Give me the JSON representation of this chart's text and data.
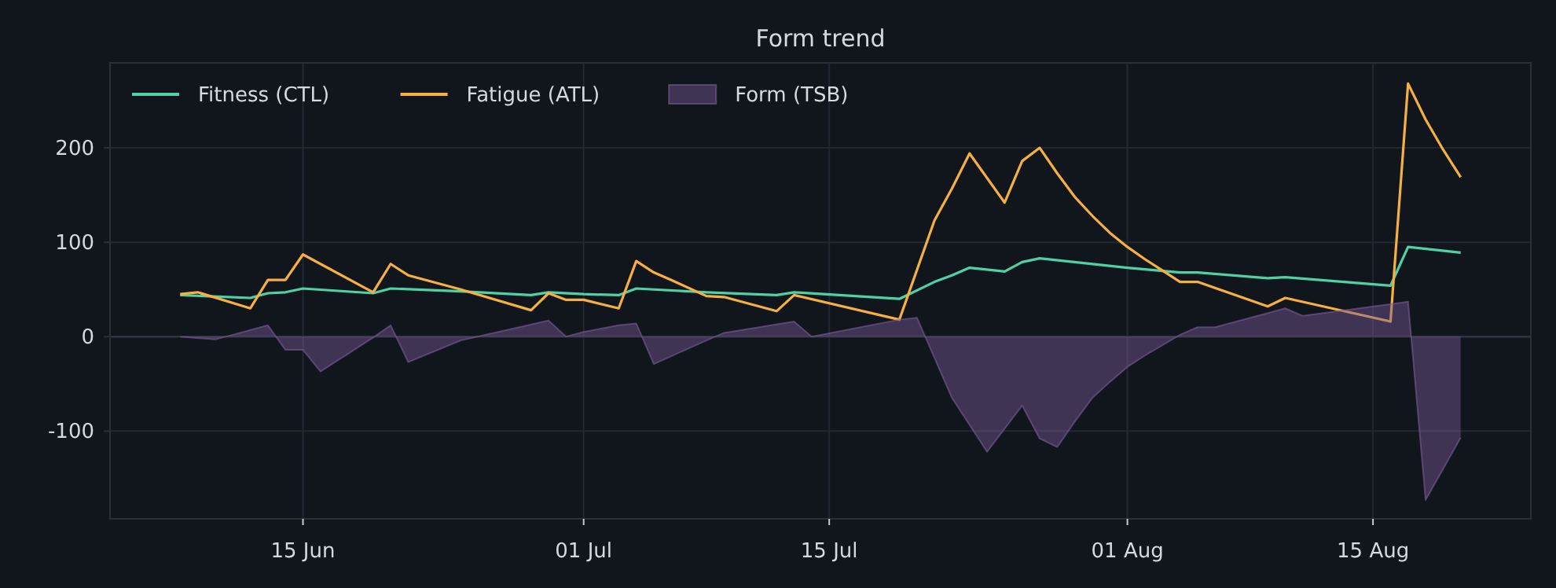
{
  "chart_data": {
    "type": "line",
    "title": "Form trend",
    "xlim": [
      "--06-04",
      "--08-24"
    ],
    "xticks": [
      {
        "value": "--06-15",
        "label": "15 Jun"
      },
      {
        "value": "--07-01",
        "label": "01 Jul"
      },
      {
        "value": "--07-15",
        "label": "15 Jul"
      },
      {
        "value": "--08-01",
        "label": "01 Aug"
      },
      {
        "value": "--08-15",
        "label": "15 Aug"
      }
    ],
    "ylim": [
      -193,
      290
    ],
    "yticks": [
      -100,
      0,
      100,
      200
    ],
    "grid": true,
    "legend": "top left",
    "line_style": "solid",
    "marker": "none",
    "ref_lines": [
      {
        "axis": "y",
        "value": 0,
        "label": null,
        "color": "#2e3440"
      }
    ],
    "series": [
      {
        "name": "Fitness (CTL)",
        "color": "#4fd1a5",
        "x": [
          "--06-08",
          "--06-12",
          "--06-13",
          "--06-14",
          "--06-15",
          "--06-19",
          "--06-20",
          "--06-24",
          "--06-28",
          "--06-29",
          "--07-01",
          "--07-03",
          "--07-04",
          "--07-08",
          "--07-12",
          "--07-13",
          "--07-19",
          "--07-21",
          "--07-22",
          "--07-23",
          "--07-25",
          "--07-26",
          "--07-27",
          "--08-01",
          "--08-04",
          "--08-05",
          "--08-09",
          "--08-10",
          "--08-16",
          "--08-17",
          "--08-20"
        ],
        "values": [
          44,
          41,
          46,
          47,
          51,
          46,
          51,
          48,
          44,
          47,
          45,
          44,
          51,
          47,
          44,
          47,
          40,
          58,
          65,
          73,
          69,
          79,
          83,
          73,
          68,
          68,
          62,
          63,
          54,
          95,
          89
        ]
      },
      {
        "name": "Fatigue (ATL)",
        "color": "#f6b042",
        "x": [
          "--06-08",
          "--06-09",
          "--06-12",
          "--06-13",
          "--06-14",
          "--06-15",
          "--06-19",
          "--06-20",
          "--06-21",
          "--06-24",
          "--06-28",
          "--06-29",
          "--06-30",
          "--07-01",
          "--07-03",
          "--07-04",
          "--07-05",
          "--07-06",
          "--07-08",
          "--07-09",
          "--07-12",
          "--07-13",
          "--07-19",
          "--07-21",
          "--07-22",
          "--07-23",
          "--07-25",
          "--07-26",
          "--07-27",
          "--07-28",
          "--07-29",
          "--07-30",
          "--07-31",
          "--08-01",
          "--08-02",
          "--08-03",
          "--08-04",
          "--08-05",
          "--08-09",
          "--08-10",
          "--08-16",
          "--08-17",
          "--08-18",
          "--08-19",
          "--08-20"
        ],
        "values": [
          45,
          47,
          30,
          60,
          60,
          87,
          47,
          77,
          65,
          50,
          28,
          46,
          39,
          39,
          30,
          80,
          68,
          60,
          43,
          42,
          27,
          44,
          18,
          123,
          157,
          194,
          142,
          186,
          200,
          173,
          148,
          128,
          110,
          95,
          82,
          70,
          58,
          58,
          32,
          41,
          16,
          268,
          230,
          198,
          169
        ]
      },
      {
        "name": "Form (TSB)",
        "type": "area",
        "color": "#7b5c99",
        "x": [
          "--06-08",
          "--06-10",
          "--06-13",
          "--06-14",
          "--06-15",
          "--06-16",
          "--06-19",
          "--06-20",
          "--06-21",
          "--06-24",
          "--06-29",
          "--06-30",
          "--07-01",
          "--07-03",
          "--07-04",
          "--07-05",
          "--07-08",
          "--07-09",
          "--07-13",
          "--07-14",
          "--07-19",
          "--07-20",
          "--07-22",
          "--07-24",
          "--07-26",
          "--07-27",
          "--07-28",
          "--07-29",
          "--07-30",
          "--07-31",
          "--08-01",
          "--08-02",
          "--08-03",
          "--08-04",
          "--08-05",
          "--08-06",
          "--08-10",
          "--08-11",
          "--08-17",
          "--08-18",
          "--08-20"
        ],
        "values": [
          0,
          -3,
          12,
          -14,
          -14,
          -37,
          -1,
          12,
          -27,
          -4,
          17,
          0,
          5,
          12,
          14,
          -29,
          -4,
          4,
          16,
          0,
          18,
          20,
          -65,
          -122,
          -73,
          -108,
          -117,
          -90,
          -65,
          -48,
          -32,
          -20,
          -9,
          2,
          10,
          10,
          30,
          22,
          37,
          -173,
          -107
        ]
      }
    ]
  }
}
